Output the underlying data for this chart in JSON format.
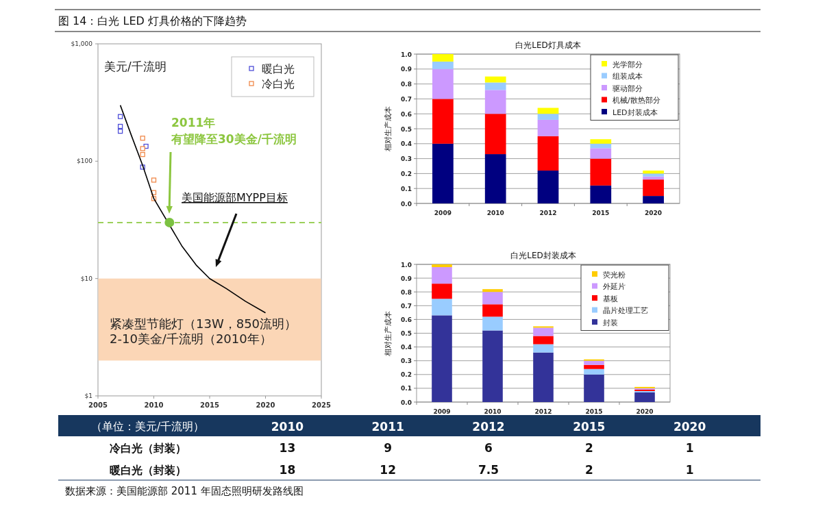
{
  "chart_data": [
    {
      "type": "scatter",
      "title": "图 14：白光 LED 灯具价格的下降趋势",
      "xlim": [
        2005,
        2025
      ],
      "xticks": [
        2005,
        2010,
        2015,
        2020,
        2025
      ],
      "ylim": [
        1,
        1000
      ],
      "log": "y",
      "yticks": [
        {
          "value": 1,
          "label": "$1"
        },
        {
          "value": 10,
          "label": "$10"
        },
        {
          "value": 100,
          "label": "$100"
        },
        {
          "value": 1000,
          "label": "$1,000"
        }
      ],
      "legend": "top right",
      "series": [
        {
          "name": "暖白光",
          "type": "scatter",
          "marker": "square",
          "color": "#4f4fd8",
          "x": [
            2007,
            2007,
            2007,
            2009.3,
            2009
          ],
          "values": [
            240,
            198,
            180,
            134,
            89
          ]
        },
        {
          "name": "冷白光",
          "type": "scatter",
          "marker": "square",
          "color": "#f0894a",
          "x": [
            2009,
            2009,
            2009,
            2010,
            2010,
            2010
          ],
          "values": [
            157,
            128,
            114,
            69,
            54,
            48
          ]
        },
        {
          "type": "line",
          "marker": "none",
          "line_style": "solid",
          "color": "#000000",
          "x": [
            2007,
            2008,
            2009,
            2010,
            2012.5,
            2013.8,
            2015,
            2016.5,
            2018.2,
            2020
          ],
          "values": [
            300,
            165,
            92,
            48,
            19,
            13,
            10,
            8.2,
            6.4,
            5.1
          ]
        },
        {
          "type": "scatter",
          "marker": "circle",
          "color": "#7cc242",
          "x": [
            2011.4
          ],
          "values": [
            30
          ]
        }
      ],
      "ref_lines": [
        {
          "axis": "y",
          "value": 30,
          "color": "#9bd05a",
          "line_style": "dashed"
        }
      ],
      "bands": [
        {
          "axis": "y",
          "from": 2,
          "to": 10,
          "color": "#fbd6b6",
          "label": "紧凑型节能灯（13W，850流明）\n2-10美金/千流明（2010年）"
        }
      ],
      "annotations": [
        "美元/千流明",
        "2011年",
        "有望降至30美金/千流明",
        "美国能源部MYPP目标"
      ]
    },
    {
      "type": "bar",
      "stacked": true,
      "title": "白光LED灯具成本",
      "ylabel": "相对生产成本",
      "categories": [
        "2009",
        "2010",
        "2012",
        "2015",
        "2020"
      ],
      "ylim": [
        0,
        1
      ],
      "yticks": [
        {
          "value": 0,
          "label": "0.0"
        },
        0.1,
        0.2,
        0.3,
        0.4,
        0.5,
        0.6,
        0.7,
        0.8,
        0.9,
        {
          "value": 1,
          "label": "1.0"
        }
      ],
      "grid": "y",
      "legend": "top right",
      "series": [
        {
          "name": "LED封装成本",
          "color": "#000080",
          "values": [
            0.4,
            0.33,
            0.22,
            0.12,
            0.05
          ]
        },
        {
          "name": "机械/散热部分",
          "color": "#ff0000",
          "values": [
            0.3,
            0.27,
            0.23,
            0.18,
            0.11
          ]
        },
        {
          "name": "驱动部分",
          "color": "#cc99ff",
          "values": [
            0.2,
            0.16,
            0.11,
            0.07,
            0.02
          ]
        },
        {
          "name": "组装成本",
          "color": "#99ccff",
          "values": [
            0.05,
            0.05,
            0.04,
            0.03,
            0.02
          ]
        },
        {
          "name": "光学部分",
          "color": "#ffff00",
          "values": [
            0.05,
            0.04,
            0.04,
            0.03,
            0.02
          ]
        }
      ]
    },
    {
      "type": "bar",
      "stacked": true,
      "title": "白光LED封装成本",
      "ylabel": "相对生产成本",
      "categories": [
        "2009",
        "2010",
        "2012",
        "2015",
        "2020"
      ],
      "ylim": [
        0,
        1
      ],
      "yticks": [
        {
          "value": 0,
          "label": "0.0"
        },
        0.1,
        0.2,
        0.3,
        0.4,
        0.5,
        0.6,
        0.7,
        0.8,
        0.9,
        {
          "value": 1,
          "label": "1.0"
        }
      ],
      "grid": "y",
      "legend": "top right",
      "series": [
        {
          "name": "封装",
          "color": "#333399",
          "values": [
            0.63,
            0.52,
            0.36,
            0.2,
            0.07
          ]
        },
        {
          "name": "晶片处理工艺",
          "color": "#99ccff",
          "values": [
            0.12,
            0.1,
            0.06,
            0.04,
            0.01
          ]
        },
        {
          "name": "基板",
          "color": "#ff0000",
          "values": [
            0.11,
            0.09,
            0.06,
            0.03,
            0.01
          ]
        },
        {
          "name": "外延片",
          "color": "#cc99ff",
          "values": [
            0.12,
            0.09,
            0.06,
            0.03,
            0.01
          ]
        },
        {
          "name": "荧光粉",
          "color": "#ffcc00",
          "values": [
            0.02,
            0.02,
            0.01,
            0.01,
            0.01
          ]
        }
      ]
    },
    {
      "type": "other",
      "title": "（单位：美元/千流明）",
      "categories": [
        "2010",
        "2011",
        "2012",
        "2015",
        "2020"
      ],
      "data_labels": true,
      "series": [
        {
          "name": "冷白光（封装）",
          "values": [
            13,
            9,
            6,
            2,
            1
          ]
        },
        {
          "name": "暖白光（封装）",
          "values": [
            18,
            12,
            7.5,
            2,
            1
          ]
        }
      ],
      "annotations": [
        "数据来源：美国能源部 2011 年固态照明研发路线图"
      ]
    }
  ]
}
